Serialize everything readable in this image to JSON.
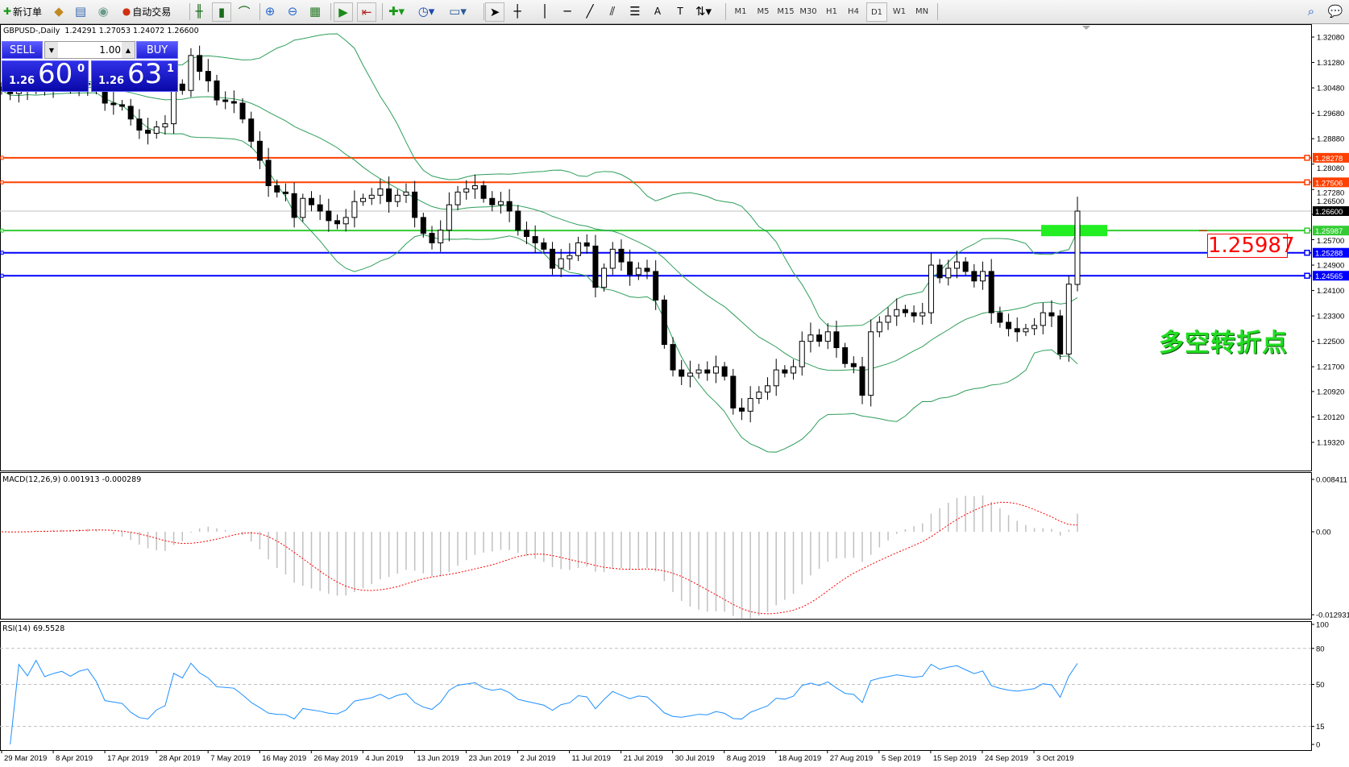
{
  "toolbar": {
    "new_order_label": "新订单",
    "auto_trading_label": "自动交易",
    "left_icons": [
      "new-order-icon",
      "navigator-icon",
      "market-watch-icon",
      "signals-icon",
      "auto-trading-icon"
    ],
    "chart_icons": [
      "bar-chart-icon",
      "candlestick-icon",
      "line-chart-icon",
      "zoom-in-icon",
      "zoom-out-icon",
      "tile-windows-icon",
      "auto-scroll-icon",
      "chart-shift-icon",
      "indicators-icon",
      "periods-icon",
      "templates-icon",
      "cursor-icon",
      "crosshair-icon",
      "vertical-line-icon",
      "horizontal-line-icon",
      "trendline-icon",
      "equidistant-channel-icon",
      "fibonacci-icon",
      "text-icon",
      "text-label-icon",
      "arrows-icon"
    ],
    "timeframes": [
      "M1",
      "M5",
      "M15",
      "M30",
      "H1",
      "H4",
      "D1",
      "W1",
      "MN"
    ],
    "selected_timeframe": "D1",
    "right_icons": [
      "search-icon",
      "chat-icon"
    ]
  },
  "chart": {
    "header": "GBPUSD-,Daily  1.24291 1.27053 1.24072 1.26600",
    "symbol": "GBPUSD-",
    "period": "Daily",
    "last_ohlc": {
      "open": 1.24291,
      "high": 1.27053,
      "low": 1.24072,
      "close": 1.266
    },
    "trade_panel": {
      "sell_label": "SELL",
      "buy_label": "BUY",
      "lot": "1.00",
      "sell_price": {
        "prefix": "1.26",
        "big": "60",
        "sup": "0"
      },
      "buy_price": {
        "prefix": "1.26",
        "big": "63",
        "sup": "1"
      }
    },
    "price_axis": [
      "1.32080",
      "1.31280",
      "1.30480",
      "1.29680",
      "1.28880",
      "1.28080",
      "1.27280",
      "1.26500",
      "1.25700",
      "1.24900",
      "1.24100",
      "1.23300",
      "1.22500",
      "1.21700",
      "1.20920",
      "1.20120",
      "1.19320"
    ],
    "hlines": [
      {
        "price": 1.28278,
        "label": "1.28278",
        "color": "#ff4000"
      },
      {
        "price": 1.27506,
        "label": "1.27506",
        "color": "#ff4000"
      },
      {
        "price": 1.266,
        "label": "1.26600",
        "color": "#c0c0c0",
        "tag_color": "#000000"
      },
      {
        "price": 1.25987,
        "label": "1.25987",
        "color": "#33cc33"
      },
      {
        "price": 1.25288,
        "label": "1.25288",
        "color": "#0000ff"
      },
      {
        "price": 1.24565,
        "label": "1.24565",
        "color": "#0000ff"
      }
    ],
    "price_callout": "1.25987",
    "annotation": "多空转折点",
    "colors": {
      "bands": "#2e9e5a",
      "bull": "#ffffff",
      "bear": "#000000",
      "macd_hist": "#c0c0c0",
      "macd_signal": "#ff0000",
      "rsi": "#1e90ff",
      "zone_box": "#22ee22"
    },
    "closes": [
      1.304,
      1.303,
      1.305,
      1.3045,
      1.306,
      1.3048,
      1.3052,
      1.3055,
      1.305,
      1.3058,
      1.3062,
      1.3045,
      1.3,
      1.2995,
      1.299,
      1.295,
      1.2915,
      1.2905,
      1.2925,
      1.2935,
      1.306,
      1.304,
      1.315,
      1.31,
      1.307,
      1.301,
      1.3005,
      1.3,
      1.295,
      1.288,
      1.282,
      1.274,
      1.272,
      1.2715,
      1.264,
      1.27,
      1.268,
      1.266,
      1.263,
      1.262,
      1.264,
      1.269,
      1.27,
      1.271,
      1.273,
      1.269,
      1.271,
      1.272,
      1.264,
      1.259,
      1.256,
      1.26,
      1.268,
      1.272,
      1.273,
      1.274,
      1.27,
      1.268,
      1.269,
      1.266,
      1.26,
      1.258,
      1.256,
      1.254,
      1.248,
      1.251,
      1.252,
      1.256,
      1.255,
      1.242,
      1.248,
      1.254,
      1.25,
      1.246,
      1.248,
      1.247,
      1.238,
      1.224,
      1.216,
      1.214,
      1.215,
      1.216,
      1.215,
      1.217,
      1.214,
      1.204,
      1.203,
      1.207,
      1.209,
      1.211,
      1.216,
      1.215,
      1.217,
      1.225,
      1.227,
      1.225,
      1.228,
      1.223,
      1.218,
      1.217,
      1.208,
      1.228,
      1.231,
      1.233,
      1.235,
      1.234,
      1.233,
      1.234,
      1.249,
      1.245,
      1.248,
      1.25,
      1.247,
      1.244,
      1.247,
      1.234,
      1.231,
      1.229,
      1.228,
      1.229,
      1.23,
      1.234,
      1.233,
      1.221,
      1.243,
      1.266
    ]
  },
  "macd": {
    "label": "MACD(12,26,9) 0.001913 -0.000289",
    "axis": [
      "0.008411",
      "0.00",
      "-0.012931"
    ],
    "range": [
      -0.012931,
      0.008411
    ]
  },
  "rsi": {
    "label": "RSI(14) 69.5528",
    "axis": [
      "100",
      "80",
      "50",
      "15",
      "0"
    ],
    "levels": [
      80,
      50,
      15
    ]
  },
  "time_axis": [
    "29 Mar 2019",
    "8 Apr 2019",
    "17 Apr 2019",
    "28 Apr 2019",
    "7 May 2019",
    "16 May 2019",
    "26 May 2019",
    "4 Jun 2019",
    "13 Jun 2019",
    "23 Jun 2019",
    "2 Jul 2019",
    "11 Jul 2019",
    "21 Jul 2019",
    "30 Jul 2019",
    "8 Aug 2019",
    "18 Aug 2019",
    "27 Aug 2019",
    "5 Sep 2019",
    "15 Sep 2019",
    "24 Sep 2019",
    "3 Oct 2019"
  ]
}
